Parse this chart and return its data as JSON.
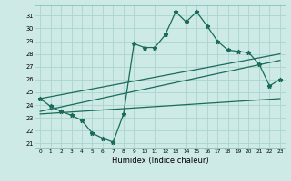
{
  "title": "",
  "xlabel": "Humidex (Indice chaleur)",
  "bg_color": "#ceeae6",
  "grid_color": "#a8d5ce",
  "line_color": "#1a6b5a",
  "xlim": [
    -0.5,
    23.5
  ],
  "ylim": [
    20.6,
    31.8
  ],
  "yticks": [
    21,
    22,
    23,
    24,
    25,
    26,
    27,
    28,
    29,
    30,
    31
  ],
  "xticks": [
    0,
    1,
    2,
    3,
    4,
    5,
    6,
    7,
    8,
    9,
    10,
    11,
    12,
    13,
    14,
    15,
    16,
    17,
    18,
    19,
    20,
    21,
    22,
    23
  ],
  "main_line": [
    24.5,
    23.9,
    23.5,
    23.2,
    22.8,
    21.8,
    21.4,
    21.1,
    23.3,
    28.8,
    28.5,
    28.5,
    29.5,
    31.3,
    30.5,
    31.3,
    30.2,
    29.0,
    28.3,
    28.2,
    28.1,
    27.2,
    25.5,
    26.0
  ],
  "trend1_x": [
    0,
    23
  ],
  "trend1_y": [
    24.5,
    28.0
  ],
  "trend2_x": [
    0,
    23
  ],
  "trend2_y": [
    23.5,
    27.5
  ],
  "trend3_x": [
    0,
    23
  ],
  "trend3_y": [
    23.3,
    24.5
  ]
}
